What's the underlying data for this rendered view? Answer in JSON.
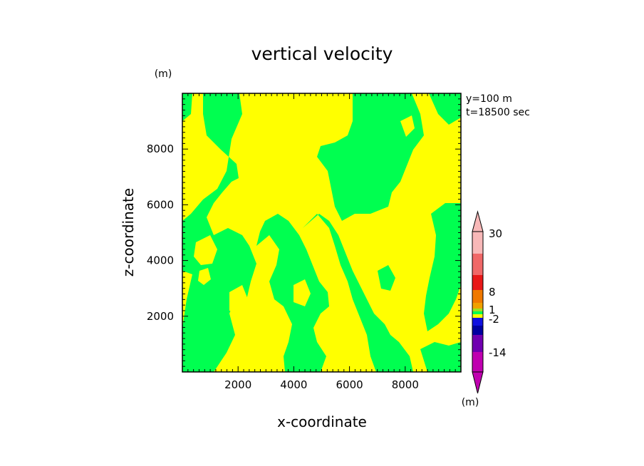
{
  "chart_data": {
    "type": "heatmap",
    "title": "vertical velocity",
    "xlabel": "x-coordinate",
    "ylabel": "z-coordinate",
    "x_unit": "(m)",
    "y_unit": "(m)",
    "xlim": [
      0,
      10000
    ],
    "ylim": [
      0,
      10000
    ],
    "x_ticks": [
      2000,
      4000,
      6000,
      8000
    ],
    "y_ticks": [
      2000,
      4000,
      6000,
      8000
    ],
    "annotations": [
      "y=100 m",
      "t=18500 sec"
    ],
    "colorbar": {
      "labels": [
        "30",
        "8",
        "1",
        "-2",
        "-14"
      ],
      "unit": "(m)",
      "colors": [
        "#f8b8b8",
        "#f06868",
        "#e81818",
        "#f07800",
        "#f0a000",
        "#a0e020",
        "#00ff50",
        "#ffff00",
        "#1010e0",
        "#0000a0",
        "#7000b0",
        "#c000b0"
      ]
    },
    "field_colors": {
      "positive_small": "#ffff00",
      "negative_small": "#00ff50"
    },
    "legend_position": "right"
  }
}
